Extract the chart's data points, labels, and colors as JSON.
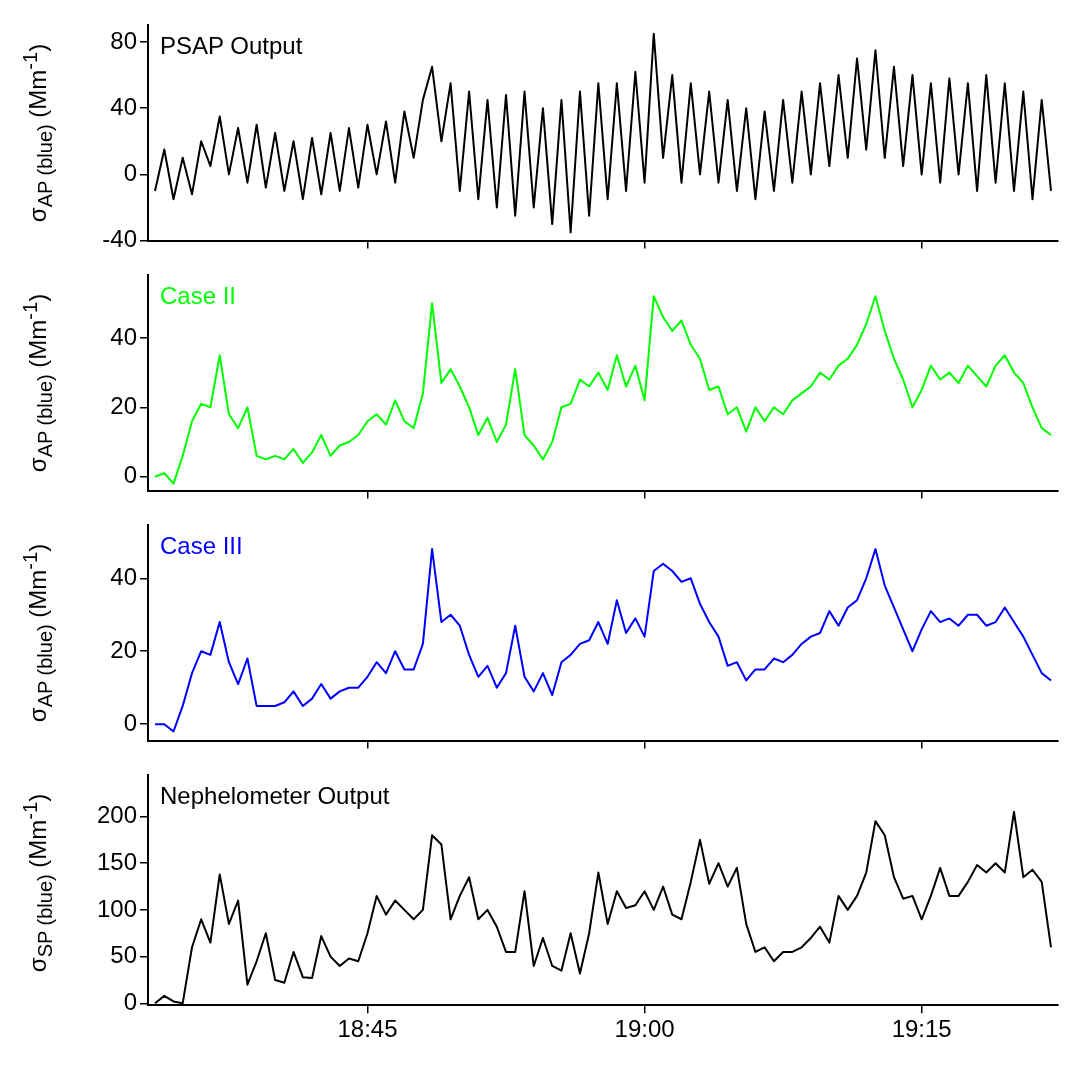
{
  "chart_data": [
    {
      "type": "line",
      "ylabel": "σ$_{AP (blue)}$ (Mm$^{-1}$)",
      "tick_labels": "y",
      "xlim": [
        18.552,
        19.373
      ],
      "xticks": [
        {
          "value": 18.75,
          "label": null
        },
        {
          "value": 19,
          "label": null
        },
        {
          "value": 19.25,
          "label": null
        }
      ],
      "ylim": [
        -40,
        90
      ],
      "yticks": [
        -40,
        0,
        40,
        80
      ],
      "x": [
        18.5583,
        18.5667,
        18.575,
        18.5833,
        18.5917,
        18.6,
        18.6083,
        18.6167,
        18.625,
        18.6333,
        18.6417,
        18.65,
        18.6583,
        18.6667,
        18.675,
        18.6833,
        18.6917,
        18.7,
        18.7083,
        18.7167,
        18.725,
        18.7333,
        18.7417,
        18.75,
        18.7583,
        18.7667,
        18.775,
        18.7833,
        18.7917,
        18.8,
        18.8083,
        18.8167,
        18.825,
        18.8333,
        18.8417,
        18.85,
        18.8583,
        18.8667,
        18.875,
        18.8833,
        18.8917,
        18.9,
        18.9083,
        18.9167,
        18.925,
        18.9333,
        18.9417,
        18.95,
        18.9583,
        18.9667,
        18.975,
        18.9833,
        18.9917,
        19,
        19.0083,
        19.0167,
        19.025,
        19.0333,
        19.0417,
        19.05,
        19.0583,
        19.0667,
        19.075,
        19.0833,
        19.0917,
        19.1,
        19.1083,
        19.1167,
        19.125,
        19.1333,
        19.1417,
        19.15,
        19.1583,
        19.1667,
        19.175,
        19.1833,
        19.1917,
        19.2,
        19.2083,
        19.2167,
        19.225,
        19.2333,
        19.2417,
        19.25,
        19.2583,
        19.2667,
        19.275,
        19.2833,
        19.2917,
        19.3,
        19.3083,
        19.3167,
        19.325,
        19.3333,
        19.3417,
        19.35,
        19.3583,
        19.3667
      ],
      "series": [
        {
          "name": "PSAP Output",
          "color": "#000000",
          "values": [
            -10,
            15,
            -15,
            10,
            -12,
            20,
            5,
            35,
            0,
            28,
            -5,
            30,
            -8,
            25,
            -10,
            20,
            -15,
            22,
            -12,
            25,
            -10,
            28,
            -8,
            30,
            0,
            32,
            -5,
            38,
            10,
            45,
            65,
            20,
            55,
            -10,
            50,
            -15,
            45,
            -20,
            48,
            -25,
            50,
            -20,
            40,
            -30,
            45,
            -35,
            50,
            -25,
            55,
            -15,
            55,
            -10,
            62,
            -5,
            85,
            10,
            60,
            -5,
            55,
            0,
            50,
            -5,
            45,
            -10,
            40,
            -15,
            38,
            -10,
            45,
            -5,
            50,
            0,
            55,
            5,
            60,
            10,
            70,
            15,
            75,
            10,
            65,
            5,
            60,
            0,
            55,
            -5,
            58,
            0,
            55,
            -10,
            60,
            -5,
            55,
            -10,
            50,
            -15,
            45,
            -10
          ]
        }
      ]
    },
    {
      "type": "line",
      "ylabel": "σ$_{AP (blue)}$ (Mm$^{-1}$)",
      "tick_labels": "y",
      "xlim": [
        18.552,
        19.373
      ],
      "xticks": [
        {
          "value": 18.75,
          "label": null
        },
        {
          "value": 19,
          "label": null
        },
        {
          "value": 19.25,
          "label": null
        }
      ],
      "ylim": [
        -4,
        58
      ],
      "yticks": [
        0,
        20,
        40
      ],
      "x": [
        18.5583,
        18.5667,
        18.575,
        18.5833,
        18.5917,
        18.6,
        18.6083,
        18.6167,
        18.625,
        18.6333,
        18.6417,
        18.65,
        18.6583,
        18.6667,
        18.675,
        18.6833,
        18.6917,
        18.7,
        18.7083,
        18.7167,
        18.725,
        18.7333,
        18.7417,
        18.75,
        18.7583,
        18.7667,
        18.775,
        18.7833,
        18.7917,
        18.8,
        18.8083,
        18.8167,
        18.825,
        18.8333,
        18.8417,
        18.85,
        18.8583,
        18.8667,
        18.875,
        18.8833,
        18.8917,
        18.9,
        18.9083,
        18.9167,
        18.925,
        18.9333,
        18.9417,
        18.95,
        18.9583,
        18.9667,
        18.975,
        18.9833,
        18.9917,
        19,
        19.0083,
        19.0167,
        19.025,
        19.0333,
        19.0417,
        19.05,
        19.0583,
        19.0667,
        19.075,
        19.0833,
        19.0917,
        19.1,
        19.1083,
        19.1167,
        19.125,
        19.1333,
        19.1417,
        19.15,
        19.1583,
        19.1667,
        19.175,
        19.1833,
        19.1917,
        19.2,
        19.2083,
        19.2167,
        19.225,
        19.2333,
        19.2417,
        19.25,
        19.2583,
        19.2667,
        19.275,
        19.2833,
        19.2917,
        19.3,
        19.3083,
        19.3167,
        19.325,
        19.3333,
        19.3417,
        19.35,
        19.3583,
        19.3667
      ],
      "series": [
        {
          "name": "Case II",
          "color": "#00ff00",
          "values": [
            0,
            1,
            -2,
            6,
            16,
            21,
            20,
            35,
            18,
            14,
            20,
            6,
            5,
            6,
            5,
            8,
            4,
            7,
            12,
            6,
            9,
            10,
            12,
            16,
            18,
            15,
            22,
            16,
            14,
            24,
            50,
            27,
            31,
            26,
            20,
            12,
            17,
            10,
            15,
            31,
            12,
            9,
            5,
            10,
            20,
            21,
            28,
            26,
            30,
            25,
            35,
            26,
            32,
            22,
            52,
            46,
            42,
            45,
            38,
            34,
            25,
            26,
            18,
            20,
            13,
            20,
            16,
            20,
            18,
            22,
            24,
            26,
            30,
            28,
            32,
            34,
            38,
            44,
            52,
            42,
            34,
            28,
            20,
            25,
            32,
            28,
            30,
            27,
            32,
            29,
            26,
            32,
            35,
            30,
            27,
            20,
            14,
            12
          ]
        }
      ]
    },
    {
      "type": "line",
      "ylabel": "σ$_{AP (blue)}$ (Mm$^{-1}$)",
      "tick_labels": "y",
      "xlim": [
        18.552,
        19.373
      ],
      "xticks": [
        {
          "value": 18.75,
          "label": null
        },
        {
          "value": 19,
          "label": null
        },
        {
          "value": 19.25,
          "label": null
        }
      ],
      "ylim": [
        -4.5,
        54.5
      ],
      "yticks": [
        0,
        20,
        40
      ],
      "x": [
        18.5583,
        18.5667,
        18.575,
        18.5833,
        18.5917,
        18.6,
        18.6083,
        18.6167,
        18.625,
        18.6333,
        18.6417,
        18.65,
        18.6583,
        18.6667,
        18.675,
        18.6833,
        18.6917,
        18.7,
        18.7083,
        18.7167,
        18.725,
        18.7333,
        18.7417,
        18.75,
        18.7583,
        18.7667,
        18.775,
        18.7833,
        18.7917,
        18.8,
        18.8083,
        18.8167,
        18.825,
        18.8333,
        18.8417,
        18.85,
        18.8583,
        18.8667,
        18.875,
        18.8833,
        18.8917,
        18.9,
        18.9083,
        18.9167,
        18.925,
        18.9333,
        18.9417,
        18.95,
        18.9583,
        18.9667,
        18.975,
        18.9833,
        18.9917,
        19,
        19.0083,
        19.0167,
        19.025,
        19.0333,
        19.0417,
        19.05,
        19.0583,
        19.0667,
        19.075,
        19.0833,
        19.0917,
        19.1,
        19.1083,
        19.1167,
        19.125,
        19.1333,
        19.1417,
        19.15,
        19.1583,
        19.1667,
        19.175,
        19.1833,
        19.1917,
        19.2,
        19.2083,
        19.2167,
        19.225,
        19.2333,
        19.2417,
        19.25,
        19.2583,
        19.2667,
        19.275,
        19.2833,
        19.2917,
        19.3,
        19.3083,
        19.3167,
        19.325,
        19.3333,
        19.3417,
        19.35,
        19.3583,
        19.3667
      ],
      "series": [
        {
          "name": "Case III",
          "color": "#0000ff",
          "values": [
            0,
            0,
            -2,
            5,
            14,
            20,
            19,
            28,
            17,
            11,
            18,
            5,
            5,
            5,
            6,
            9,
            5,
            7,
            11,
            7,
            9,
            10,
            10,
            13,
            17,
            14,
            20,
            15,
            15,
            22,
            48,
            28,
            30,
            27,
            19,
            13,
            16,
            10,
            14,
            27,
            13,
            9,
            14,
            8,
            17,
            19,
            22,
            23,
            28,
            22,
            34,
            25,
            29,
            24,
            42,
            44,
            42,
            39,
            40,
            33,
            28,
            24,
            16,
            17,
            12,
            15,
            15,
            18,
            17,
            19,
            22,
            24,
            25,
            31,
            27,
            32,
            34,
            40,
            48,
            38,
            32,
            26,
            20,
            26,
            31,
            28,
            29,
            27,
            30,
            30,
            27,
            28,
            32,
            28,
            24,
            19,
            14,
            12
          ]
        }
      ]
    },
    {
      "type": "line",
      "ylabel": "σ$_{SP (blue)}$ (Mm$^{-1}$)",
      "xlim": [
        18.552,
        19.373
      ],
      "xticks": [
        {
          "value": 18.75,
          "label": "18:45"
        },
        {
          "value": 19,
          "label": "19:00"
        },
        {
          "value": 19.25,
          "label": "19:15"
        }
      ],
      "ylim": [
        -2,
        244
      ],
      "yticks": [
        0,
        50,
        100,
        150,
        200
      ],
      "x": [
        18.5583,
        18.5667,
        18.575,
        18.5833,
        18.5917,
        18.6,
        18.6083,
        18.6167,
        18.625,
        18.6333,
        18.6417,
        18.65,
        18.6583,
        18.6667,
        18.675,
        18.6833,
        18.6917,
        18.7,
        18.7083,
        18.7167,
        18.725,
        18.7333,
        18.7417,
        18.75,
        18.7583,
        18.7667,
        18.775,
        18.7833,
        18.7917,
        18.8,
        18.8083,
        18.8167,
        18.825,
        18.8333,
        18.8417,
        18.85,
        18.8583,
        18.8667,
        18.875,
        18.8833,
        18.8917,
        18.9,
        18.9083,
        18.9167,
        18.925,
        18.9333,
        18.9417,
        18.95,
        18.9583,
        18.9667,
        18.975,
        18.9833,
        18.9917,
        19,
        19.0083,
        19.0167,
        19.025,
        19.0333,
        19.0417,
        19.05,
        19.0583,
        19.0667,
        19.075,
        19.0833,
        19.0917,
        19.1,
        19.1083,
        19.1167,
        19.125,
        19.1333,
        19.1417,
        19.15,
        19.1583,
        19.1667,
        19.175,
        19.1833,
        19.1917,
        19.2,
        19.2083,
        19.2167,
        19.225,
        19.2333,
        19.2417,
        19.25,
        19.2583,
        19.2667,
        19.275,
        19.2833,
        19.2917,
        19.3,
        19.3083,
        19.3167,
        19.325,
        19.3333,
        19.3417,
        19.35,
        19.3583,
        19.3667
      ],
      "series": [
        {
          "name": "Nephelometer Output",
          "color": "#000000",
          "values": [
            0,
            8,
            2,
            0,
            60,
            90,
            65,
            138,
            85,
            110,
            20,
            45,
            75,
            25,
            22,
            55,
            28,
            27,
            72,
            50,
            40,
            48,
            45,
            75,
            115,
            95,
            110,
            100,
            90,
            100,
            180,
            170,
            90,
            115,
            135,
            90,
            100,
            82,
            55,
            55,
            120,
            40,
            70,
            40,
            35,
            75,
            32,
            75,
            140,
            85,
            120,
            102,
            105,
            120,
            100,
            125,
            95,
            90,
            130,
            175,
            128,
            150,
            125,
            145,
            85,
            55,
            60,
            45,
            55,
            55,
            60,
            70,
            82,
            65,
            115,
            100,
            115,
            140,
            195,
            180,
            135,
            112,
            115,
            90,
            115,
            145,
            115,
            115,
            130,
            148,
            140,
            150,
            140,
            205,
            135,
            143,
            130,
            60
          ]
        }
      ]
    }
  ]
}
